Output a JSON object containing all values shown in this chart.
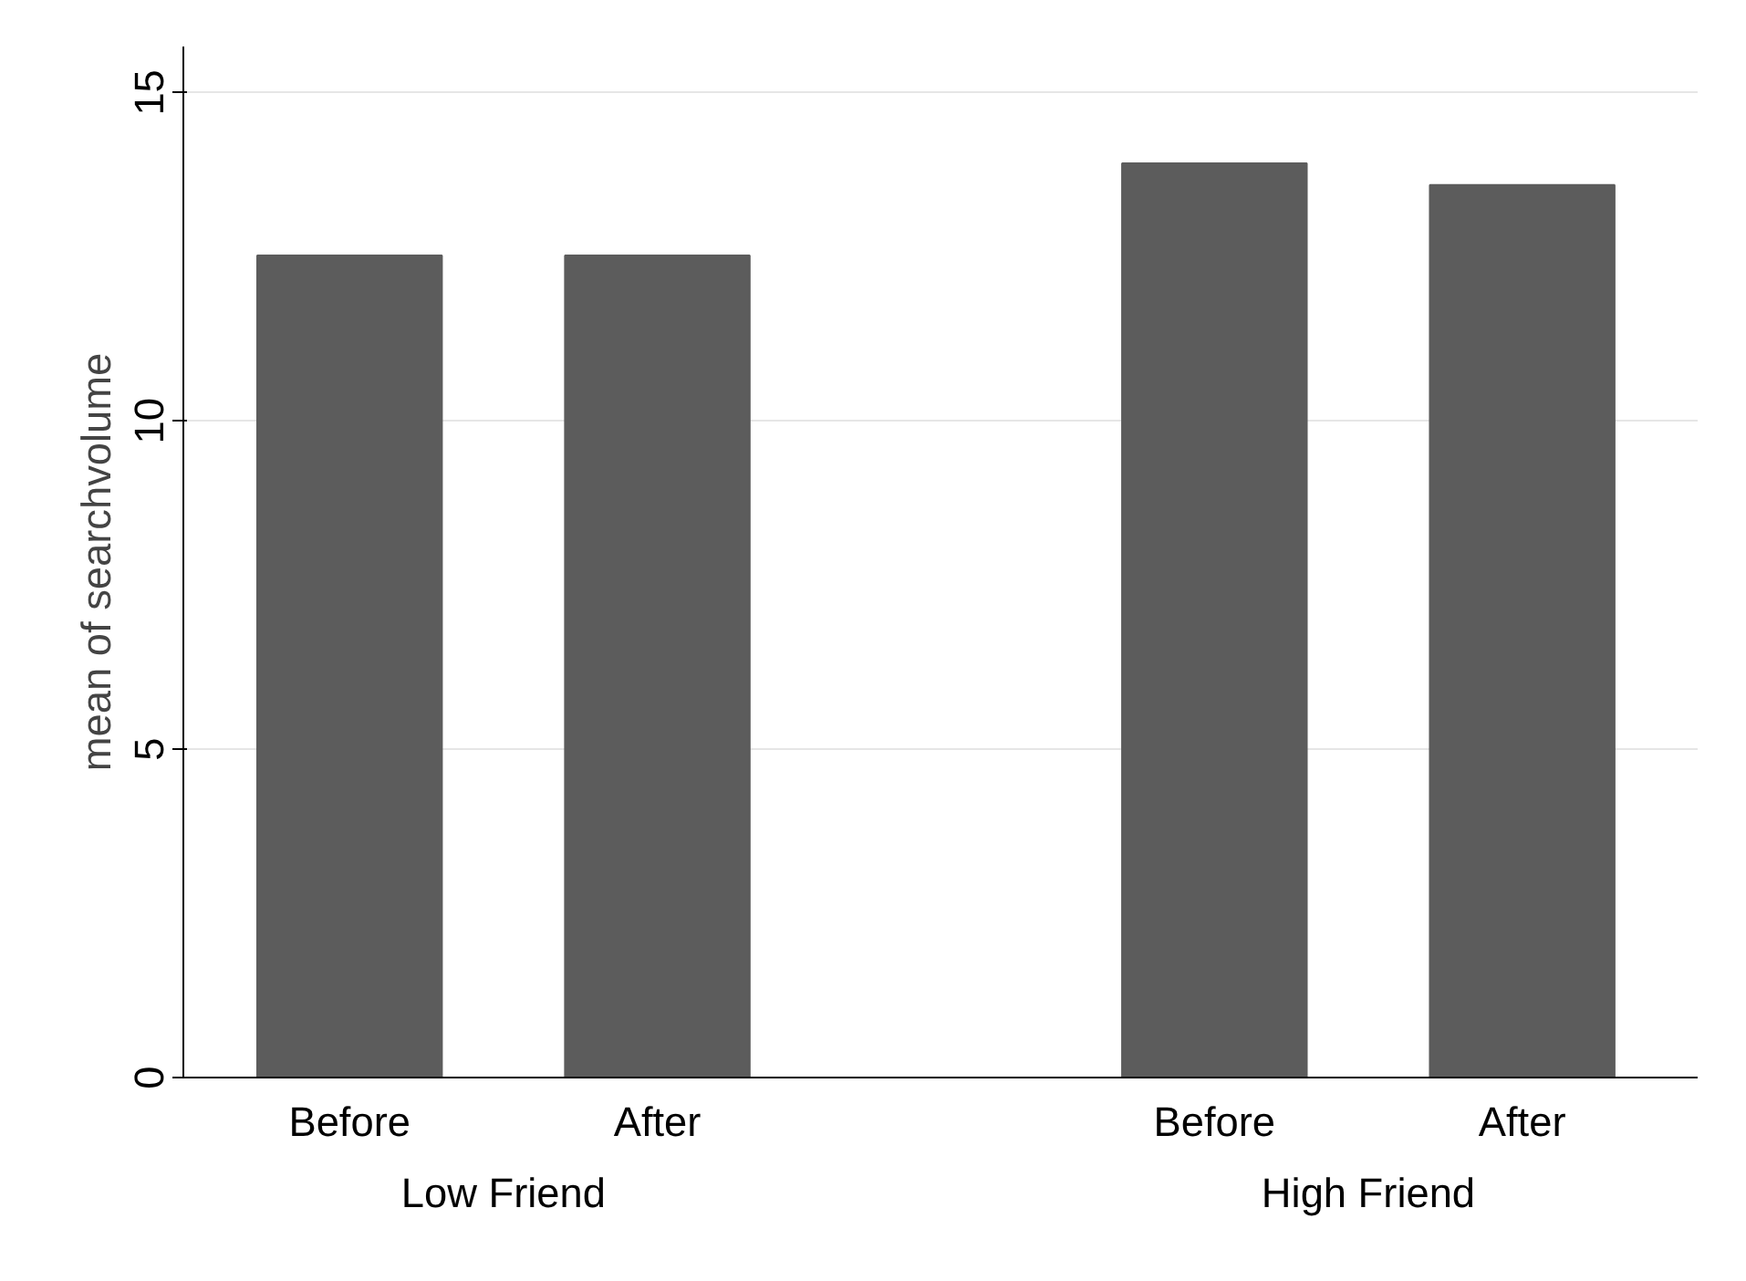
{
  "chart_data": {
    "type": "bar",
    "categories": [
      "Before",
      "After",
      "Before",
      "After"
    ],
    "values": [
      12.52,
      12.52,
      13.92,
      13.59
    ],
    "color": "#5c5c5c",
    "ylabel": "mean of searchvolume",
    "ylim": [
      0,
      15.7
    ],
    "yticks": [
      0,
      5,
      10,
      15
    ],
    "grid": "y",
    "annotations": [
      "Low Friend",
      "High Friend"
    ]
  }
}
